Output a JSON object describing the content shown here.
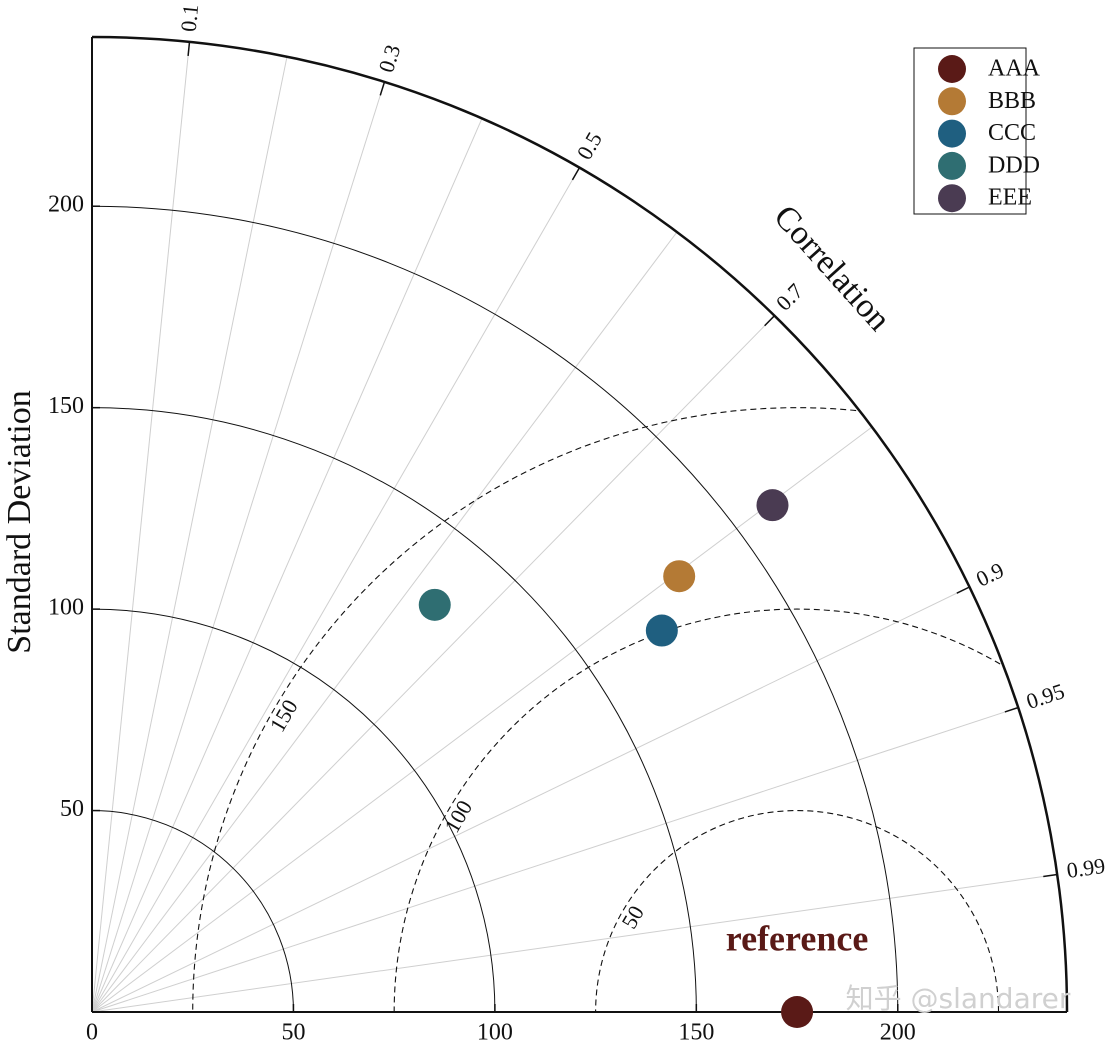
{
  "chart_data": {
    "type": "taylor",
    "corr_label": "Correlation",
    "y_label": "Standard Deviation",
    "std_lim": [
      0,
      242
    ],
    "xticks": [
      0,
      50,
      100,
      150,
      200
    ],
    "yticks": [
      50,
      100,
      150,
      200
    ],
    "std_arcs": [
      50,
      100,
      150,
      200
    ],
    "corr_lines": [
      0.1,
      0.2,
      0.3,
      0.4,
      0.5,
      0.6,
      0.7,
      0.8,
      0.9,
      0.95,
      0.99
    ],
    "corr_ticks": [
      0.1,
      0.3,
      0.5,
      0.7,
      0.9,
      0.95,
      0.99
    ],
    "rms_arcs": [
      50,
      100,
      150
    ],
    "reference": {
      "label": "reference",
      "std": 175,
      "color": "#5a1a17"
    },
    "series": [
      {
        "name": "AAA",
        "color": "#5a1a17",
        "std": 175,
        "corr": 1
      },
      {
        "name": "BBB",
        "color": "#b47a35",
        "std": 181.5,
        "corr": 0.803
      },
      {
        "name": "CCC",
        "color": "#1f5f80",
        "std": 170.2,
        "corr": 0.831
      },
      {
        "name": "DDD",
        "color": "#2f6e72",
        "std": 132.1,
        "corr": 0.644
      },
      {
        "name": "EEE",
        "color": "#4a3b52",
        "std": 210.6,
        "corr": 0.802
      }
    ],
    "watermark": "知乎 @slandarer"
  }
}
